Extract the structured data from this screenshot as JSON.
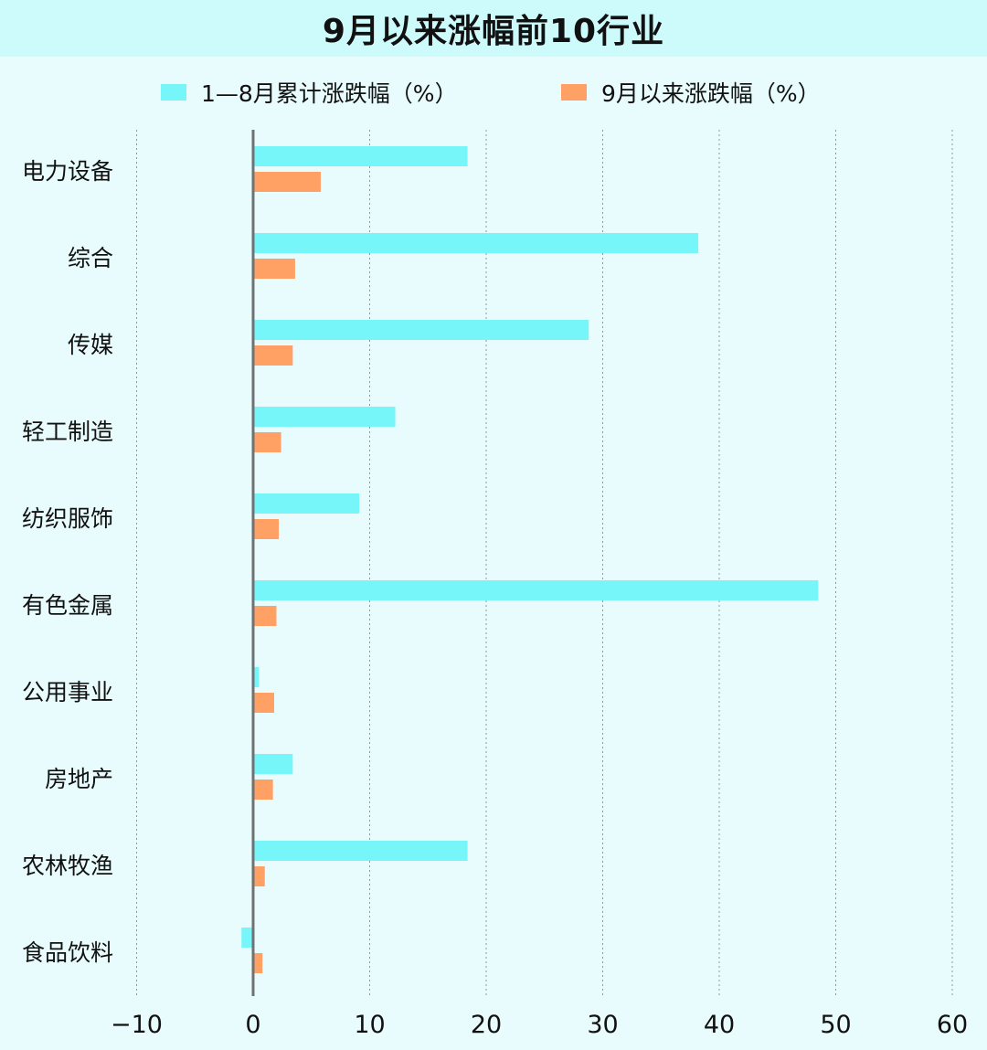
{
  "chart_data": {
    "type": "bar",
    "orientation": "horizontal",
    "title": "9月以来涨幅前10行业",
    "categories": [
      "电力设备",
      "综合",
      "传媒",
      "轻工制造",
      "纺织服饰",
      "有色金属",
      "公用事业",
      "房地产",
      "农林牧渔",
      "食品饮料"
    ],
    "series": [
      {
        "name": "1—8月累计涨跌幅（%）",
        "color": "#77f6f9",
        "values": [
          18.4,
          38.2,
          28.8,
          12.2,
          9.1,
          48.5,
          0.5,
          3.4,
          18.4,
          -1.0
        ]
      },
      {
        "name": "9月以来涨跌幅（%）",
        "color": "#ffa065",
        "values": [
          5.8,
          3.6,
          3.4,
          2.4,
          2.2,
          2.0,
          1.8,
          1.7,
          1.0,
          0.8
        ]
      }
    ],
    "xlim": [
      -10,
      60
    ],
    "xticks": [
      "−10",
      "0",
      "10",
      "20",
      "30",
      "40",
      "50",
      "60"
    ],
    "xtick_values": [
      -10,
      0,
      10,
      20,
      30,
      40,
      50,
      60
    ],
    "grid": "vertical dotted",
    "legend": "top"
  }
}
